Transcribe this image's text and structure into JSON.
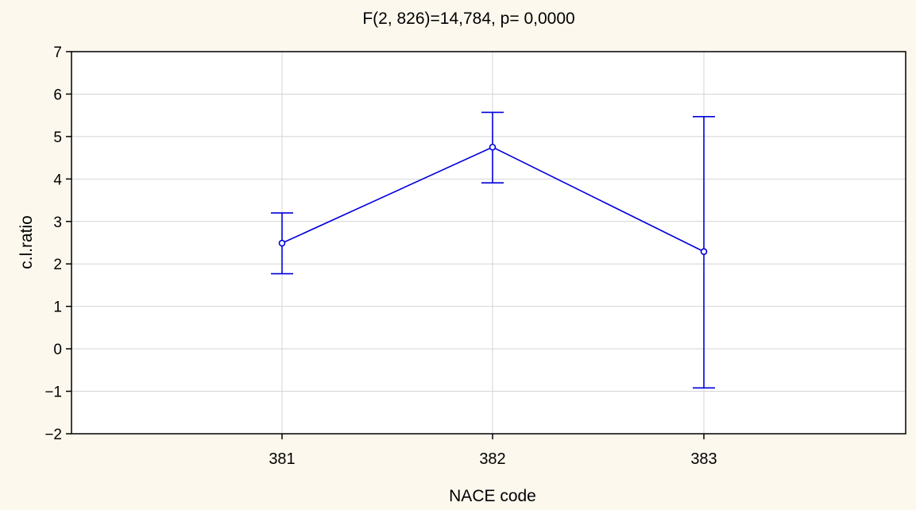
{
  "chart_data": {
    "type": "line",
    "title": "F(2, 826)=14,784, p= 0,0000",
    "xlabel": "NACE code",
    "ylabel": "c.l.ratio",
    "categories": [
      "381",
      "382",
      "383"
    ],
    "series": [
      {
        "values": [
          2.49,
          4.75,
          2.29
        ],
        "lower": [
          1.77,
          3.91,
          -0.92
        ],
        "upper": [
          3.2,
          5.57,
          5.47
        ]
      }
    ],
    "ylim": [
      -2,
      7
    ],
    "yticks": [
      -2,
      -1,
      0,
      1,
      2,
      3,
      4,
      5,
      6,
      7
    ],
    "ytick_labels": [
      "−2",
      "−1",
      "0",
      "1",
      "2",
      "3",
      "4",
      "5",
      "6",
      "7"
    ],
    "grid": true,
    "colors": {
      "series": "#0000dd",
      "grid": "#d4d4d4",
      "plot_background": "#ffffff",
      "page_background": "#fdf8ee",
      "axis": "#000000"
    }
  }
}
